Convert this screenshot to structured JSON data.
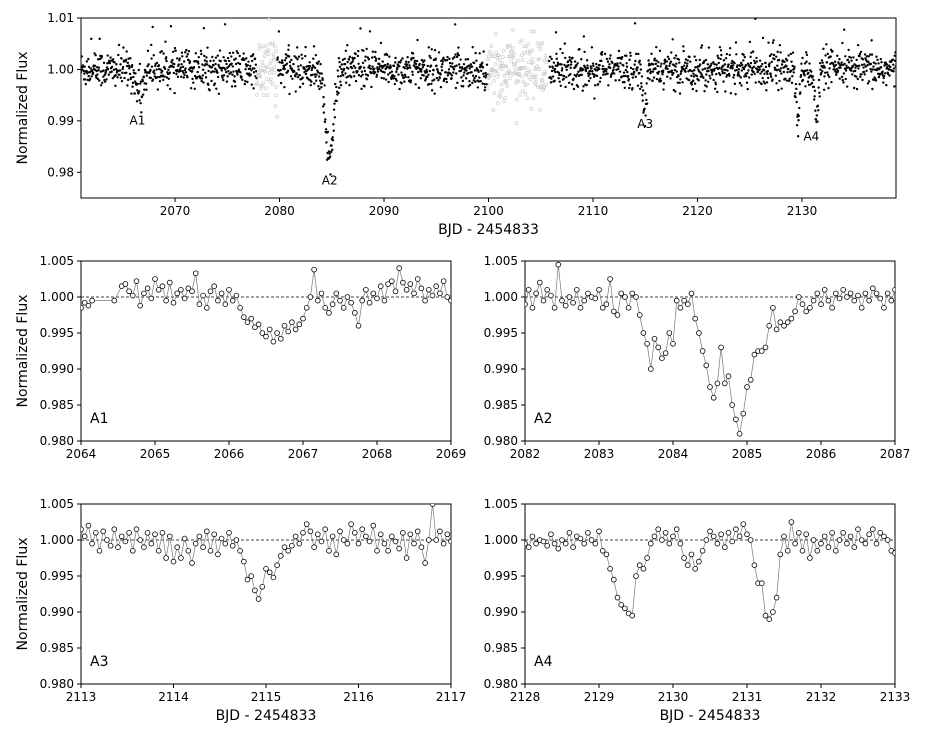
{
  "chart_data": [
    {
      "type": "scatter",
      "panel": "overview",
      "xlabel": "BJD - 2454833",
      "ylabel": "Normalized Flux",
      "xlim": [
        2061,
        2139
      ],
      "ylim": [
        0.975,
        1.01
      ],
      "xticks": [
        2070,
        2080,
        2090,
        2100,
        2110,
        2120,
        2130
      ],
      "xtick_labels": [
        "2070",
        "2080",
        "2090",
        "2100",
        "2110",
        "2120",
        "2130"
      ],
      "yticks": [
        0.98,
        0.99,
        1.0,
        1.01
      ],
      "ytick_labels": [
        "0.98",
        "0.99",
        "1.00",
        "1.01"
      ],
      "series_colors": {
        "main": "#000000",
        "masked": "#c8c8c8"
      },
      "baseline": 1.0,
      "noise": 0.0018,
      "segments": [
        {
          "start": 2061.0,
          "end": 2077.8,
          "style": "main"
        },
        {
          "start": 2077.8,
          "end": 2079.8,
          "style": "masked"
        },
        {
          "start": 2079.8,
          "end": 2099.9,
          "style": "main"
        },
        {
          "start": 2099.9,
          "end": 2105.6,
          "style": "masked"
        },
        {
          "start": 2105.8,
          "end": 2139.0,
          "style": "main"
        }
      ],
      "dips": [
        {
          "center": 2066.6,
          "halfwidth": 0.6,
          "depth": 0.0048
        },
        {
          "center": 2084.8,
          "halfwidth": 0.75,
          "depth": 0.017
        },
        {
          "center": 2114.95,
          "halfwidth": 0.35,
          "depth": 0.008
        },
        {
          "center": 2129.6,
          "halfwidth": 0.3,
          "depth": 0.0105
        },
        {
          "center": 2131.4,
          "halfwidth": 0.3,
          "depth": 0.0105
        }
      ],
      "annotations": [
        {
          "text": "A1",
          "x": 2066.4,
          "y": 0.9893
        },
        {
          "text": "A2",
          "x": 2084.8,
          "y": 0.9776
        },
        {
          "text": "A3",
          "x": 2115.0,
          "y": 0.9886
        },
        {
          "text": "A4",
          "x": 2130.9,
          "y": 0.9862
        }
      ]
    },
    {
      "type": "line",
      "panel": "A1",
      "label": "A1",
      "xlim": [
        2064,
        2069
      ],
      "ylim": [
        0.98,
        1.005
      ],
      "xticks": [
        2064,
        2065,
        2066,
        2067,
        2068,
        2069
      ],
      "xtick_labels": [
        "2064",
        "2065",
        "2066",
        "2067",
        "2068",
        "2069"
      ],
      "yticks": [
        0.98,
        0.985,
        0.99,
        0.995,
        1.0,
        1.005
      ],
      "ytick_labels": [
        "0.980",
        "0.985",
        "0.990",
        "0.995",
        "1.000",
        "1.005"
      ],
      "ylabel": "Normalized Flux",
      "xlabel": "",
      "reference_line": 1.0,
      "x": [
        2064.0,
        2064.05,
        2064.1,
        2064.15,
        2064.45,
        2064.55,
        2064.6,
        2064.65,
        2064.7,
        2064.75,
        2064.8,
        2064.85,
        2064.9,
        2064.95,
        2065.0,
        2065.05,
        2065.1,
        2065.15,
        2065.2,
        2065.25,
        2065.3,
        2065.35,
        2065.4,
        2065.45,
        2065.5,
        2065.55,
        2065.6,
        2065.65,
        2065.7,
        2065.75,
        2065.8,
        2065.85,
        2065.9,
        2065.95,
        2066.0,
        2066.05,
        2066.1,
        2066.15,
        2066.2,
        2066.25,
        2066.3,
        2066.35,
        2066.4,
        2066.45,
        2066.5,
        2066.55,
        2066.6,
        2066.65,
        2066.7,
        2066.75,
        2066.8,
        2066.85,
        2066.9,
        2066.95,
        2067.0,
        2067.05,
        2067.1,
        2067.15,
        2067.2,
        2067.25,
        2067.3,
        2067.35,
        2067.4,
        2067.45,
        2067.5,
        2067.55,
        2067.6,
        2067.65,
        2067.7,
        2067.75,
        2067.8,
        2067.85,
        2067.9,
        2067.95,
        2068.0,
        2068.05,
        2068.1,
        2068.15,
        2068.2,
        2068.25,
        2068.3,
        2068.35,
        2068.4,
        2068.45,
        2068.5,
        2068.55,
        2068.6,
        2068.65,
        2068.7,
        2068.75,
        2068.8,
        2068.85,
        2068.9,
        2068.95,
        2069.0
      ],
      "y": [
        0.9985,
        0.9992,
        0.9988,
        0.9995,
        0.9995,
        1.0015,
        1.0018,
        1.0008,
        1.0002,
        1.0022,
        0.9988,
        1.0005,
        1.0012,
        0.9998,
        1.0025,
        1.001,
        1.0015,
        0.9995,
        1.002,
        0.9992,
        1.0005,
        1.001,
        0.9998,
        1.0012,
        1.0008,
        1.0033,
        0.999,
        1.0002,
        0.9985,
        1.0008,
        1.0015,
        0.9995,
        1.0005,
        0.999,
        1.001,
        0.9995,
        1.0002,
        0.9985,
        0.9972,
        0.9965,
        0.997,
        0.9958,
        0.9962,
        0.995,
        0.9945,
        0.9955,
        0.9938,
        0.995,
        0.9942,
        0.996,
        0.9952,
        0.9965,
        0.9955,
        0.9962,
        0.997,
        0.9985,
        1.0,
        1.0038,
        0.9995,
        1.0005,
        0.9985,
        0.9978,
        0.999,
        1.0005,
        0.9995,
        0.9985,
        1.0,
        0.9992,
        0.9978,
        0.996,
        0.9995,
        1.001,
        0.9992,
        1.0005,
        0.9998,
        1.0015,
        0.9995,
        1.0018,
        1.0022,
        1.0008,
        1.004,
        1.002,
        1.001,
        1.0018,
        1.0005,
        1.0025,
        1.0012,
        0.9995,
        1.001,
        1.0002,
        1.0015,
        1.0005,
        1.0022,
        1.0,
        0.9995
      ]
    },
    {
      "type": "line",
      "panel": "A2",
      "label": "A2",
      "xlim": [
        2082,
        2087
      ],
      "ylim": [
        0.98,
        1.005
      ],
      "xticks": [
        2082,
        2083,
        2084,
        2085,
        2086,
        2087
      ],
      "xtick_labels": [
        "2082",
        "2083",
        "2084",
        "2085",
        "2086",
        "2087"
      ],
      "yticks": [
        0.98,
        0.985,
        0.99,
        0.995,
        1.0,
        1.005
      ],
      "ytick_labels": [
        "0.980",
        "0.985",
        "0.990",
        "0.995",
        "1.000",
        "1.005"
      ],
      "ylabel": "",
      "xlabel": "",
      "reference_line": 1.0,
      "x": [
        2082.0,
        2082.05,
        2082.1,
        2082.15,
        2082.2,
        2082.25,
        2082.3,
        2082.35,
        2082.4,
        2082.45,
        2082.5,
        2082.55,
        2082.6,
        2082.65,
        2082.7,
        2082.75,
        2082.8,
        2082.85,
        2082.9,
        2082.95,
        2083.0,
        2083.05,
        2083.1,
        2083.15,
        2083.2,
        2083.25,
        2083.3,
        2083.35,
        2083.4,
        2083.45,
        2083.5,
        2083.55,
        2083.6,
        2083.65,
        2083.7,
        2083.75,
        2083.8,
        2083.85,
        2083.9,
        2083.95,
        2084.0,
        2084.05,
        2084.1,
        2084.15,
        2084.2,
        2084.25,
        2084.3,
        2084.35,
        2084.4,
        2084.45,
        2084.5,
        2084.55,
        2084.6,
        2084.65,
        2084.7,
        2084.75,
        2084.8,
        2084.85,
        2084.9,
        2084.95,
        2085.0,
        2085.05,
        2085.1,
        2085.15,
        2085.2,
        2085.25,
        2085.3,
        2085.35,
        2085.4,
        2085.45,
        2085.5,
        2085.55,
        2085.6,
        2085.65,
        2085.7,
        2085.75,
        2085.8,
        2085.85,
        2085.9,
        2085.95,
        2086.0,
        2086.05,
        2086.1,
        2086.15,
        2086.2,
        2086.25,
        2086.3,
        2086.35,
        2086.4,
        2086.45,
        2086.5,
        2086.55,
        2086.6,
        2086.65,
        2086.7,
        2086.75,
        2086.8,
        2086.85,
        2086.9,
        2086.95,
        2087.0
      ],
      "y": [
        0.999,
        1.001,
        0.9985,
        1.0005,
        1.002,
        0.9995,
        1.001,
        1.0002,
        0.9985,
        1.0045,
        0.9995,
        0.9988,
        1.0,
        0.9992,
        1.001,
        0.9985,
        0.9995,
        1.0005,
        1.0,
        0.9998,
        1.001,
        0.9985,
        0.999,
        1.0025,
        0.998,
        0.9975,
        1.0005,
        1.0,
        0.9985,
        1.0005,
        1.0,
        0.9975,
        0.995,
        0.9935,
        0.99,
        0.9942,
        0.993,
        0.9915,
        0.9922,
        0.995,
        0.9935,
        0.9995,
        0.9985,
        0.9995,
        0.999,
        1.0005,
        0.997,
        0.995,
        0.9925,
        0.9905,
        0.9875,
        0.986,
        0.988,
        0.993,
        0.988,
        0.989,
        0.985,
        0.983,
        0.981,
        0.9838,
        0.9875,
        0.9885,
        0.992,
        0.9925,
        0.9925,
        0.993,
        0.996,
        0.9985,
        0.9955,
        0.9965,
        0.996,
        0.9965,
        0.997,
        0.998,
        1.0,
        0.999,
        0.998,
        0.9985,
        0.9995,
        1.0005,
        0.999,
        1.001,
        0.9995,
        0.9985,
        1.0005,
        0.9998,
        1.001,
        1.0,
        1.0005,
        0.9995,
        1.0002,
        0.9985,
        1.0005,
        0.9995,
        1.0012,
        1.0005,
        0.9998,
        0.9985,
        1.0005,
        0.9995,
        1.001
      ]
    },
    {
      "type": "line",
      "panel": "A3",
      "label": "A3",
      "xlim": [
        2113,
        2117
      ],
      "ylim": [
        0.98,
        1.005
      ],
      "xticks": [
        2113,
        2114,
        2115,
        2116,
        2117
      ],
      "xtick_labels": [
        "2113",
        "2114",
        "2115",
        "2116",
        "2117"
      ],
      "yticks": [
        0.98,
        0.985,
        0.99,
        0.995,
        1.0,
        1.005
      ],
      "ytick_labels": [
        "0.980",
        "0.985",
        "0.990",
        "0.995",
        "1.000",
        "1.005"
      ],
      "ylabel": "Normalized Flux",
      "xlabel": "BJD - 2454833",
      "reference_line": 1.0,
      "x": [
        2113.0,
        2113.04,
        2113.08,
        2113.12,
        2113.16,
        2113.2,
        2113.24,
        2113.28,
        2113.32,
        2113.36,
        2113.4,
        2113.44,
        2113.48,
        2113.52,
        2113.56,
        2113.6,
        2113.64,
        2113.68,
        2113.72,
        2113.76,
        2113.8,
        2113.84,
        2113.88,
        2113.92,
        2113.96,
        2114.0,
        2114.04,
        2114.08,
        2114.12,
        2114.16,
        2114.2,
        2114.24,
        2114.28,
        2114.32,
        2114.36,
        2114.4,
        2114.44,
        2114.48,
        2114.52,
        2114.56,
        2114.6,
        2114.64,
        2114.68,
        2114.72,
        2114.76,
        2114.8,
        2114.84,
        2114.88,
        2114.92,
        2114.96,
        2115.0,
        2115.04,
        2115.08,
        2115.12,
        2115.16,
        2115.2,
        2115.24,
        2115.28,
        2115.32,
        2115.36,
        2115.4,
        2115.44,
        2115.48,
        2115.52,
        2115.56,
        2115.6,
        2115.64,
        2115.68,
        2115.72,
        2115.76,
        2115.8,
        2115.84,
        2115.88,
        2115.92,
        2115.96,
        2116.0,
        2116.04,
        2116.08,
        2116.12,
        2116.16,
        2116.2,
        2116.24,
        2116.28,
        2116.32,
        2116.36,
        2116.4,
        2116.44,
        2116.48,
        2116.52,
        2116.56,
        2116.6,
        2116.64,
        2116.68,
        2116.72,
        2116.76,
        2116.8,
        2116.84,
        2116.88,
        2116.92,
        2116.96,
        2117.0
      ],
      "y": [
        1.0015,
        1.0005,
        1.002,
        0.9995,
        1.001,
        0.9985,
        1.0012,
        1.0,
        0.9992,
        1.0015,
        0.999,
        1.0005,
        0.9998,
        1.001,
        0.9985,
        1.0015,
        1.0,
        0.999,
        1.001,
        0.9995,
        1.0008,
        0.9985,
        1.001,
        0.9975,
        1.0005,
        0.997,
        0.999,
        0.9975,
        1.0002,
        0.9985,
        0.9968,
        0.9995,
        1.0005,
        0.999,
        1.0012,
        0.9985,
        1.0008,
        0.998,
        1.0002,
        0.9995,
        1.001,
        0.9992,
        1.0,
        0.9985,
        0.997,
        0.9945,
        0.995,
        0.993,
        0.9918,
        0.9935,
        0.996,
        0.9955,
        0.9948,
        0.9965,
        0.9978,
        0.999,
        0.9985,
        0.9992,
        1.0005,
        0.9995,
        1.001,
        1.0022,
        1.0012,
        0.999,
        1.0008,
        0.9998,
        1.0015,
        0.9985,
        1.0005,
        0.998,
        1.0012,
        1.0,
        0.9995,
        1.0022,
        1.001,
        0.9995,
        1.0015,
        1.0005,
        0.9998,
        1.002,
        0.9985,
        1.0008,
        0.9995,
        0.9985,
        1.0005,
        0.9998,
        0.9988,
        1.001,
        0.9975,
        1.0008,
        0.9995,
        1.0012,
        0.999,
        0.9968,
        1.0,
        1.005,
        1.0,
        1.0012,
        0.9995,
        1.0008,
        0.9998
      ]
    },
    {
      "type": "line",
      "panel": "A4",
      "label": "A4",
      "xlim": [
        2128,
        2133
      ],
      "ylim": [
        0.98,
        1.005
      ],
      "xticks": [
        2128,
        2129,
        2130,
        2131,
        2132,
        2133
      ],
      "xtick_labels": [
        "2128",
        "2129",
        "2130",
        "2131",
        "2132",
        "2133"
      ],
      "yticks": [
        0.98,
        0.985,
        0.99,
        0.995,
        1.0,
        1.005
      ],
      "ytick_labels": [
        "0.980",
        "0.985",
        "0.990",
        "0.995",
        "1.000",
        "1.005"
      ],
      "ylabel": "",
      "xlabel": "BJD - 2454833",
      "reference_line": 1.0,
      "x": [
        2128.0,
        2128.05,
        2128.1,
        2128.15,
        2128.2,
        2128.25,
        2128.3,
        2128.35,
        2128.4,
        2128.45,
        2128.5,
        2128.55,
        2128.6,
        2128.65,
        2128.7,
        2128.75,
        2128.8,
        2128.85,
        2128.9,
        2128.95,
        2129.0,
        2129.05,
        2129.1,
        2129.15,
        2129.2,
        2129.25,
        2129.3,
        2129.35,
        2129.4,
        2129.45,
        2129.5,
        2129.55,
        2129.6,
        2129.65,
        2129.7,
        2129.75,
        2129.8,
        2129.85,
        2129.9,
        2129.95,
        2130.0,
        2130.05,
        2130.1,
        2130.15,
        2130.2,
        2130.25,
        2130.3,
        2130.35,
        2130.4,
        2130.45,
        2130.5,
        2130.55,
        2130.6,
        2130.65,
        2130.7,
        2130.75,
        2130.8,
        2130.85,
        2130.9,
        2130.95,
        2131.0,
        2131.05,
        2131.1,
        2131.15,
        2131.2,
        2131.25,
        2131.3,
        2131.35,
        2131.4,
        2131.45,
        2131.5,
        2131.55,
        2131.6,
        2131.65,
        2131.7,
        2131.75,
        2131.8,
        2131.85,
        2131.9,
        2131.95,
        2132.0,
        2132.05,
        2132.1,
        2132.15,
        2132.2,
        2132.25,
        2132.3,
        2132.35,
        2132.4,
        2132.45,
        2132.5,
        2132.55,
        2132.6,
        2132.65,
        2132.7,
        2132.75,
        2132.8,
        2132.85,
        2132.9,
        2132.95,
        2133.0
      ],
      "y": [
        0.9995,
        0.999,
        1.0005,
        0.9995,
        1.0,
        0.9998,
        0.9992,
        1.0008,
        0.9995,
        0.9988,
        1.0,
        0.9995,
        1.001,
        0.999,
        1.0005,
        1.0002,
        0.9995,
        1.001,
        1.0,
        0.9995,
        1.0012,
        0.9985,
        0.998,
        0.996,
        0.9945,
        0.992,
        0.991,
        0.9905,
        0.9898,
        0.9895,
        0.995,
        0.9965,
        0.996,
        0.9975,
        0.9995,
        1.0005,
        1.0015,
        1.0,
        1.001,
        0.9995,
        1.0005,
        1.0015,
        0.9995,
        0.9975,
        0.9965,
        0.998,
        0.996,
        0.997,
        0.9985,
        1.0,
        1.0012,
        1.0005,
        0.9995,
        1.0008,
        0.999,
        1.001,
        0.9998,
        1.0015,
        1.0005,
        1.0022,
        1.0008,
        1.0,
        0.9965,
        0.994,
        0.994,
        0.9895,
        0.989,
        0.99,
        0.992,
        0.998,
        1.0005,
        0.9985,
        1.0025,
        0.9995,
        1.001,
        0.9985,
        1.0008,
        0.9975,
        1.0,
        0.9985,
        0.9995,
        1.0005,
        0.999,
        1.001,
        0.9985,
        1.0,
        1.001,
        0.9995,
        1.0005,
        0.999,
        1.0015,
        1.0,
        0.9995,
        1.0008,
        1.0015,
        0.9995,
        1.001,
        1.0005,
        1.0,
        0.9985,
        0.9982
      ]
    }
  ]
}
